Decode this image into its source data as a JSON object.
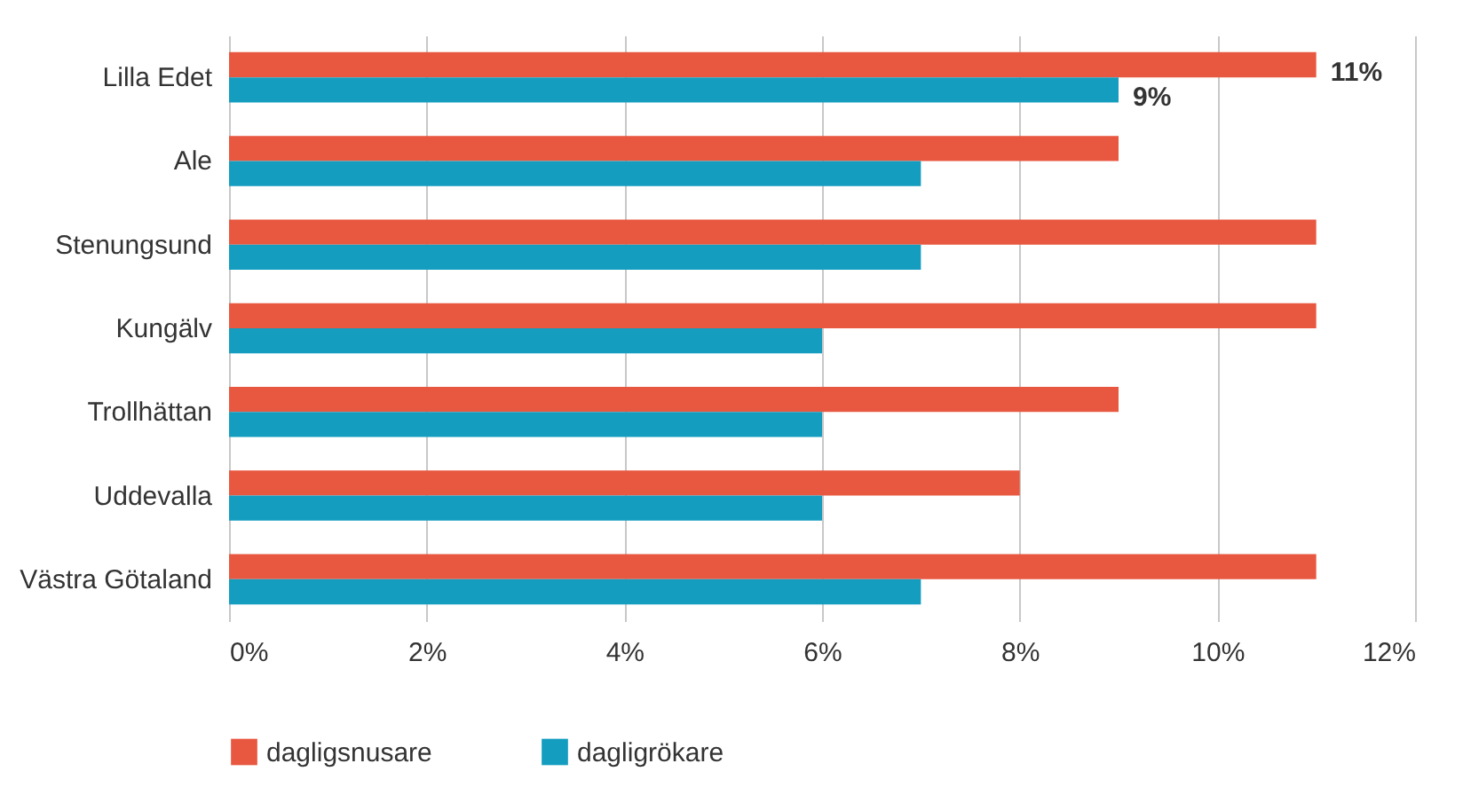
{
  "chart_data": {
    "type": "bar",
    "orientation": "horizontal",
    "categories": [
      "Lilla Edet",
      "Ale",
      "Stenungsund",
      "Kungälv",
      "Trollhättan",
      "Uddevalla",
      "Västra Götaland"
    ],
    "series": [
      {
        "name": "dagligsnusare",
        "color": "#e8573f",
        "values": [
          11,
          9,
          11,
          11,
          9,
          8,
          11
        ],
        "value_labels": [
          "11%",
          null,
          null,
          null,
          null,
          null,
          null
        ]
      },
      {
        "name": "dagligrökare",
        "color": "#149dbf",
        "values": [
          9,
          7,
          7,
          6,
          6,
          6,
          7
        ],
        "value_labels": [
          "9%",
          null,
          null,
          null,
          null,
          null,
          null
        ]
      }
    ],
    "xlim": [
      0,
      12
    ],
    "xticks": [
      {
        "value": 0,
        "label": "0%"
      },
      {
        "value": 2,
        "label": "2%"
      },
      {
        "value": 4,
        "label": "4%"
      },
      {
        "value": 6,
        "label": "6%"
      },
      {
        "value": 8,
        "label": "8%"
      },
      {
        "value": 10,
        "label": "10%"
      },
      {
        "value": 12,
        "label": "12%"
      }
    ],
    "grid": "x",
    "legend": "bottom"
  }
}
